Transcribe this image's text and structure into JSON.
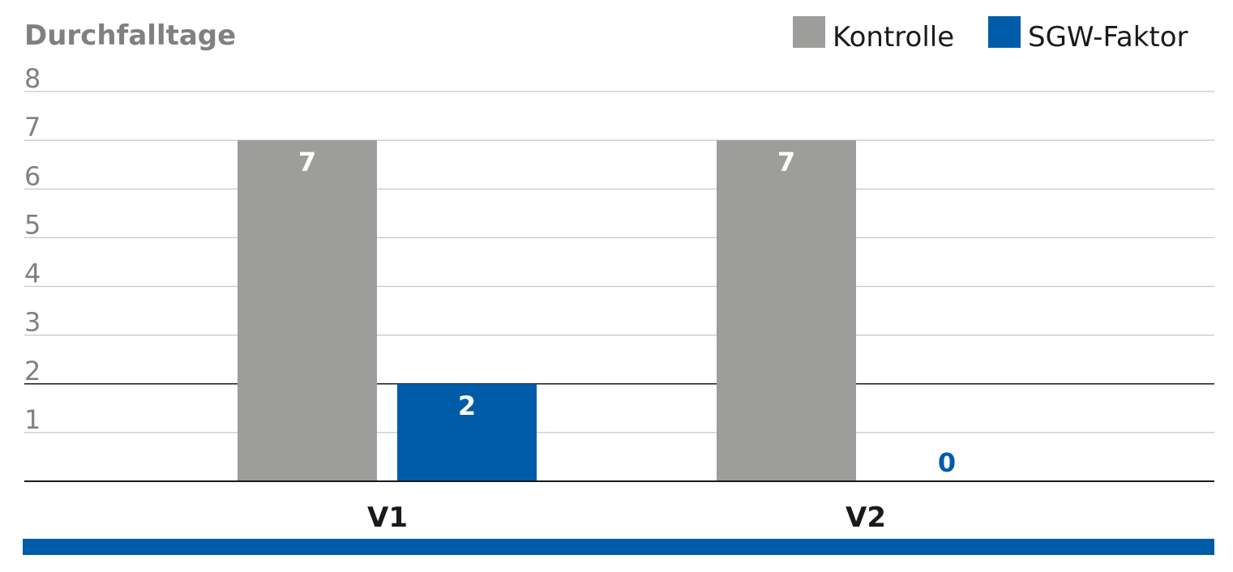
{
  "chart_data": {
    "type": "bar",
    "title": "",
    "ylabel": "Durchfalltage",
    "xlabel": "",
    "categories": [
      "V1",
      "V2"
    ],
    "series": [
      {
        "name": "Kontrolle",
        "values": [
          7,
          7
        ],
        "color": "#9d9d9c",
        "label_color": "#ffffff"
      },
      {
        "name": "SGW-Faktor",
        "values": [
          2,
          0
        ],
        "color": "#005ca9",
        "label_color": "#ffffff",
        "zero_label_color": "#005ca9"
      }
    ],
    "ylim": [
      0,
      8
    ],
    "yticks": [
      1,
      2,
      3,
      4,
      5,
      6,
      7,
      8
    ],
    "grid": true,
    "legend_position": "top-right",
    "colors": {
      "axis_text": "#808080",
      "category_text": "#1a1a1a",
      "gridline": "#c6c6c6",
      "bottom_band": "#005ca9"
    }
  }
}
